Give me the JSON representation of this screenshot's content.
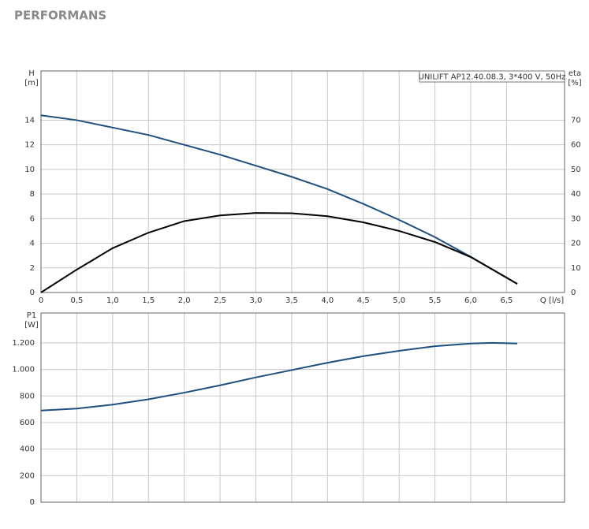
{
  "header": {
    "title": "PERFORMANS"
  },
  "chart_data": [
    {
      "type": "line",
      "annotation": "UNILIFT AP12.40.08.3, 3*400 V, 50Hz",
      "xlabel": "Q [l/s]",
      "ylabel": "H",
      "yunit": "[m]",
      "y2label": "eta",
      "y2unit": "[%]",
      "x": [
        0,
        0.5,
        1.0,
        1.5,
        2.0,
        2.5,
        3.0,
        3.5,
        4.0,
        4.5,
        5.0,
        5.5,
        6.0,
        6.65
      ],
      "series": [
        {
          "color": "#1f4f7f",
          "values": [
            14.4,
            14.0,
            13.4,
            12.8,
            12.0,
            11.2,
            10.3,
            9.4,
            8.4,
            7.2,
            5.9,
            4.5,
            2.9,
            0.7
          ]
        },
        {
          "color": "#000000",
          "axis": "y2",
          "values": [
            0,
            9.3,
            18,
            24.3,
            29,
            31.3,
            32.3,
            32.2,
            31,
            28.5,
            25,
            20.5,
            14.4,
            3.5
          ]
        }
      ],
      "xlim": [
        0,
        7.31
      ],
      "xticks": [
        0,
        {
          "value": 0.5,
          "label": "0,5"
        },
        {
          "value": 1.0,
          "label": "1,0"
        },
        {
          "value": 1.5,
          "label": "1,5"
        },
        {
          "value": 2.0,
          "label": "2,0"
        },
        {
          "value": 2.5,
          "label": "2,5"
        },
        {
          "value": 3.0,
          "label": "3,0"
        },
        {
          "value": 3.5,
          "label": "3,5"
        },
        {
          "value": 4.0,
          "label": "4,0"
        },
        {
          "value": 4.5,
          "label": "4,5"
        },
        {
          "value": 5.0,
          "label": "5,0"
        },
        {
          "value": 5.5,
          "label": "5,5"
        },
        {
          "value": 6.0,
          "label": "6,0"
        },
        {
          "value": 6.5,
          "label": "6,5"
        }
      ],
      "ylim": [
        0,
        18
      ],
      "yticks": [
        0,
        2,
        4,
        6,
        8,
        10,
        12,
        14
      ],
      "y2lim": [
        0,
        90
      ],
      "y2ticks": [
        0,
        10,
        20,
        30,
        40,
        50,
        60,
        70
      ],
      "grid": true
    },
    {
      "type": "line",
      "ylabel": "P1",
      "yunit": "[W]",
      "x": [
        0,
        0.5,
        1.0,
        1.5,
        2.0,
        2.5,
        3.0,
        3.5,
        4.0,
        4.5,
        5.0,
        5.5,
        6.0,
        6.3,
        6.65
      ],
      "series": [
        {
          "color": "#1f4f7f",
          "values": [
            690,
            705,
            735,
            775,
            825,
            880,
            940,
            995,
            1050,
            1100,
            1140,
            1175,
            1195,
            1200,
            1195
          ]
        }
      ],
      "xlim": [
        0,
        7.31
      ],
      "xticks": [
        0,
        0.5,
        1.0,
        1.5,
        2.0,
        2.5,
        3.0,
        3.5,
        4.0,
        4.5,
        5.0,
        5.5,
        6.0,
        6.5
      ],
      "xtick_labels": false,
      "ylim": [
        0,
        1425
      ],
      "yticks": [
        0,
        200,
        400,
        600,
        800,
        {
          "value": 1000,
          "label": "1.000"
        },
        {
          "value": 1200,
          "label": "1.200"
        }
      ],
      "grid": true
    }
  ]
}
